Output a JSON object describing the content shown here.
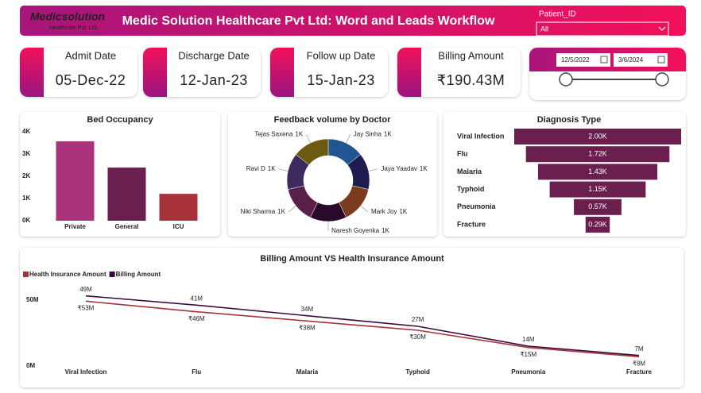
{
  "header": {
    "logo_name": "Medicsolution",
    "logo_sub": "Healthcare Pvt. Ltd.",
    "title": "Medic Solution Healthcare Pvt Ltd: Word and Leads Workflow",
    "filter_label": "Patient_ID",
    "filter_value": "All"
  },
  "cards": [
    {
      "label": "Admit Date",
      "value": "05-Dec-22"
    },
    {
      "label": "Discharge Date",
      "value": "12-Jan-23"
    },
    {
      "label": "Follow up Date",
      "value": "15-Jan-23"
    },
    {
      "label": "Billing Amount",
      "value": "₹190.43M"
    }
  ],
  "date_range": {
    "start": "12/5/2022",
    "end": "3/6/2024"
  },
  "chart_data": [
    {
      "type": "bar",
      "title": "Bed Occupancy",
      "categories": [
        "Private",
        "General",
        "ICU"
      ],
      "values": [
        3570,
        2390,
        1210
      ],
      "colors": [
        "#a8337a",
        "#6b1f4f",
        "#a8323c"
      ],
      "ylim": [
        0,
        4000
      ],
      "yticks": [
        {
          "value": 0,
          "label": "0K"
        },
        {
          "value": 1000,
          "label": "1K"
        },
        {
          "value": 2000,
          "label": "2K"
        },
        {
          "value": 3000,
          "label": "3K"
        },
        {
          "value": 4000,
          "label": "4K"
        }
      ],
      "grid": false
    },
    {
      "type": "pie",
      "title": "Feedback volume by Doctor",
      "categories": [
        "Jay Sinha",
        "Jaya Yaadav",
        "Mark Joy",
        "Naresh Goyenka",
        "Niki Sharma",
        "Ravi D",
        "Tejas Saxena"
      ],
      "values": [
        1000,
        1000,
        1000,
        1000,
        1000,
        1000,
        1000
      ],
      "value_labels": [
        "1K",
        "1K",
        "1K",
        "1K",
        "1K",
        "1K",
        "1K"
      ],
      "colors": [
        "#1f5591",
        "#1e1b4f",
        "#7a3b1f",
        "#2a0a2a",
        "#5a1f4a",
        "#3d2a5e",
        "#6b5a10"
      ],
      "donut": true
    },
    {
      "type": "funnel",
      "title": "Diagnosis Type",
      "categories": [
        "Viral Infection",
        "Flu",
        "Malaria",
        "Typhoid",
        "Pneumonia",
        "Fracture"
      ],
      "values": [
        2000,
        1720,
        1430,
        1150,
        570,
        290
      ],
      "value_labels": [
        "2.00K",
        "1.72K",
        "1.43K",
        "1.15K",
        "0.57K",
        "0.29K"
      ],
      "color": "#6b1f4f"
    },
    {
      "type": "line",
      "title": "Billing Amount VS Health Insurance Amount",
      "categories": [
        "Viral Infection",
        "Flu",
        "Malaria",
        "Typhoid",
        "Pneumonia",
        "Fracture"
      ],
      "series": [
        {
          "name": "Health Insurance Amount",
          "color": "#a8323c",
          "values": [
            49,
            41,
            34,
            27,
            14,
            7
          ],
          "value_labels": [
            "49M",
            "41M",
            "34M",
            "27M",
            "14M",
            "7M"
          ]
        },
        {
          "name": "Billing Amount",
          "color": "#3a0a3e",
          "values": [
            53,
            46,
            38,
            30,
            15,
            8
          ],
          "value_labels": [
            "₹53M",
            "₹46M",
            "₹38M",
            "₹30M",
            "₹15M",
            "₹8M"
          ]
        }
      ],
      "ylim": [
        0,
        60
      ],
      "yticks": [
        {
          "value": 0,
          "label": "0M"
        },
        {
          "value": 50,
          "label": "50M"
        }
      ],
      "legend": "top-left",
      "grid": false
    }
  ]
}
